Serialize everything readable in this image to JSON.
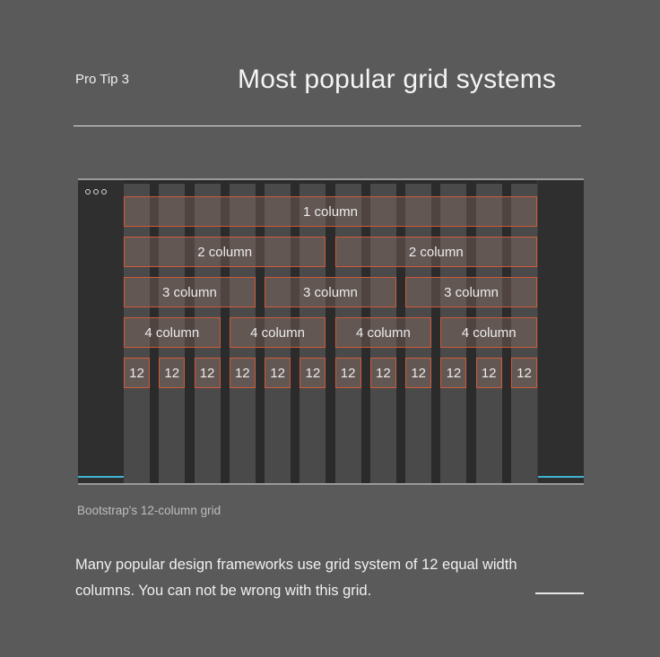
{
  "header": {
    "tip_label": "Pro Tip 3",
    "title": "Most popular grid systems"
  },
  "grid_demo": {
    "rows": [
      {
        "label": "1 column",
        "count": 1
      },
      {
        "label": "2 column",
        "count": 2
      },
      {
        "label": "3 column",
        "count": 3
      },
      {
        "label": "4 column",
        "count": 4
      },
      {
        "label": "12",
        "count": 12
      }
    ],
    "column_count": 12,
    "accent_color": "#cf5a3a",
    "highlight_color": "#3fb3d4"
  },
  "caption": "Bootstrap's 12-column grid",
  "description": "Many popular design frameworks use grid system of 12 equal width columns. You can not be wrong with this grid."
}
